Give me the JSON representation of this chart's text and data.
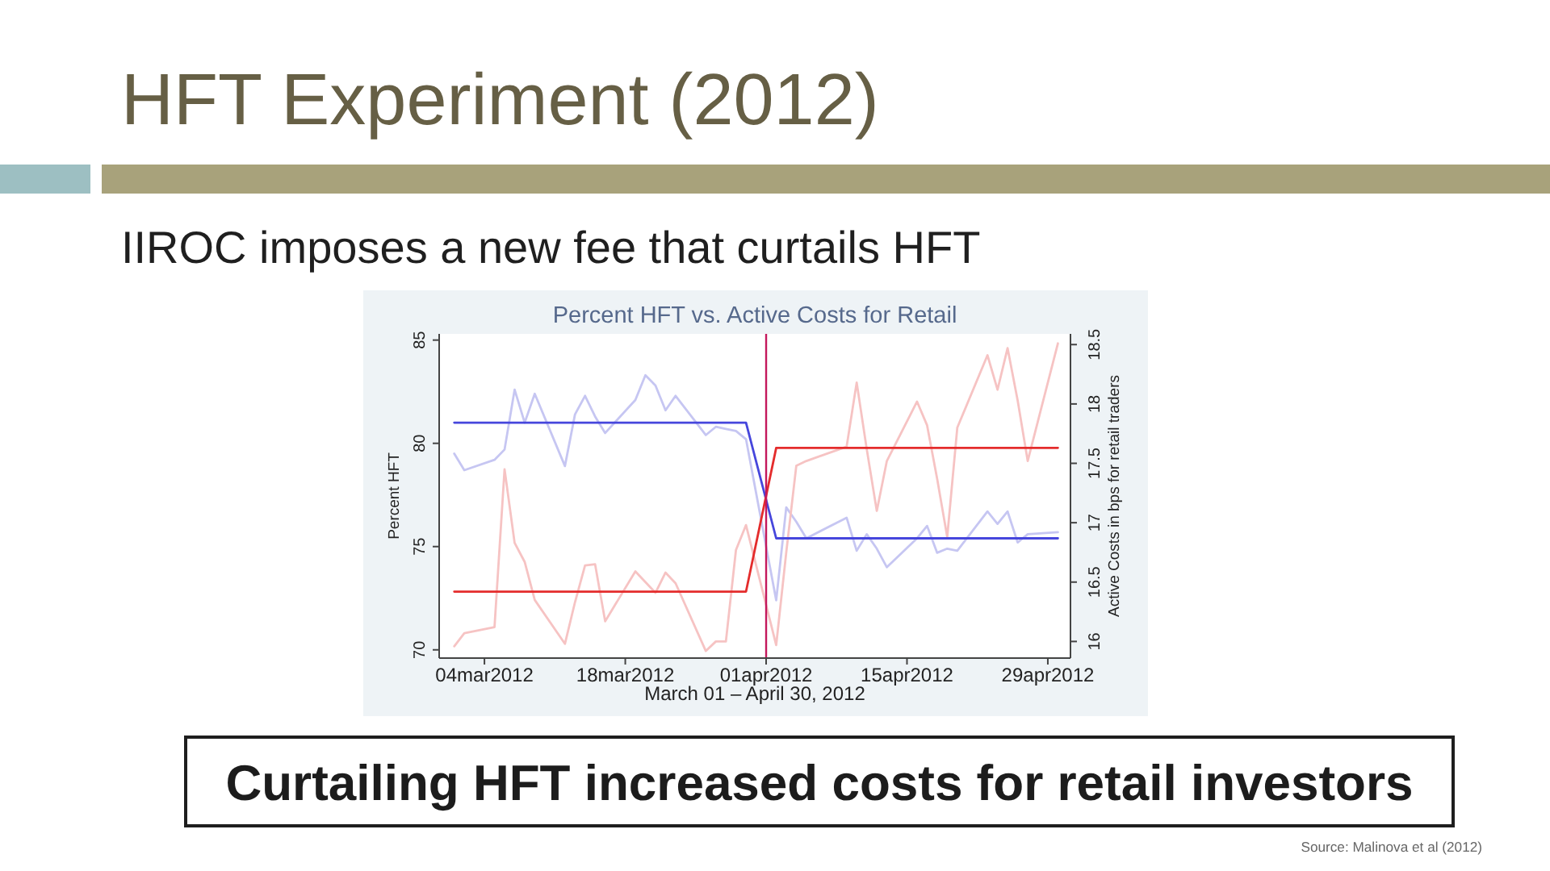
{
  "chart_data": {
    "type": "line",
    "title": "HFT Experiment (2012)",
    "subtitle": "IIROC imposes a new fee that curtails HFT",
    "annotations": [
      "Percent HFT vs. Active Costs for Retail",
      "Curtailing HFT increased costs for retail investors",
      "Source: Malinova et al (2012)"
    ],
    "xlabel": "March 01 – April 30, 2012",
    "ylabel": "Percent HFT",
    "y2label": "Active Costs in bps for retail traders",
    "x": [
      "2012-03-01",
      "2012-03-02",
      "2012-03-05",
      "2012-03-06",
      "2012-03-07",
      "2012-03-08",
      "2012-03-09",
      "2012-03-12",
      "2012-03-13",
      "2012-03-14",
      "2012-03-15",
      "2012-03-16",
      "2012-03-19",
      "2012-03-20",
      "2012-03-21",
      "2012-03-22",
      "2012-03-23",
      "2012-03-26",
      "2012-03-27",
      "2012-03-28",
      "2012-03-29",
      "2012-03-30",
      "2012-04-02",
      "2012-04-03",
      "2012-04-04",
      "2012-04-05",
      "2012-04-09",
      "2012-04-10",
      "2012-04-11",
      "2012-04-12",
      "2012-04-13",
      "2012-04-16",
      "2012-04-17",
      "2012-04-18",
      "2012-04-19",
      "2012-04-20",
      "2012-04-23",
      "2012-04-24",
      "2012-04-25",
      "2012-04-26",
      "2012-04-27",
      "2012-04-30"
    ],
    "series": [
      {
        "color": "#c6c6f2",
        "values": [
          79.5,
          78.7,
          79.2,
          79.7,
          82.6,
          81.0,
          82.4,
          78.9,
          81.4,
          82.3,
          81.3,
          80.5,
          82.1,
          83.3,
          82.8,
          81.6,
          82.3,
          80.4,
          80.8,
          80.7,
          80.6,
          80.2,
          72.4,
          76.9,
          76.2,
          75.4,
          76.4,
          74.8,
          75.6,
          74.9,
          74.0,
          75.4,
          76.0,
          74.7,
          74.9,
          74.8,
          76.7,
          76.1,
          76.7,
          75.2,
          75.6,
          75.7
        ]
      },
      {
        "color": "#f6c3c3",
        "axis": "y2",
        "values": [
          15.96,
          16.07,
          16.12,
          17.45,
          16.83,
          16.67,
          16.35,
          15.98,
          16.33,
          16.64,
          16.65,
          16.17,
          16.59,
          16.5,
          16.41,
          16.58,
          16.49,
          15.92,
          16.0,
          16.0,
          16.77,
          16.98,
          15.97,
          16.75,
          17.48,
          17.52,
          17.64,
          18.18,
          17.62,
          17.1,
          17.52,
          18.02,
          17.82,
          17.37,
          16.88,
          17.8,
          18.41,
          18.12,
          18.47,
          18.03,
          17.52,
          18.51
        ]
      },
      {
        "color": "#4646dc",
        "values": [
          81.0,
          81.0,
          81.0,
          81.0,
          81.0,
          81.0,
          81.0,
          81.0,
          81.0,
          81.0,
          81.0,
          81.0,
          81.0,
          81.0,
          81.0,
          81.0,
          81.0,
          81.0,
          81.0,
          81.0,
          81.0,
          81.0,
          75.4,
          75.4,
          75.4,
          75.4,
          75.4,
          75.4,
          75.4,
          75.4,
          75.4,
          75.4,
          75.4,
          75.4,
          75.4,
          75.4,
          75.4,
          75.4,
          75.4,
          75.4,
          75.4,
          75.4
        ]
      },
      {
        "color": "#e42c2c",
        "axis": "y2",
        "values": [
          16.42,
          16.42,
          16.42,
          16.42,
          16.42,
          16.42,
          16.42,
          16.42,
          16.42,
          16.42,
          16.42,
          16.42,
          16.42,
          16.42,
          16.42,
          16.42,
          16.42,
          16.42,
          16.42,
          16.42,
          16.42,
          16.42,
          17.63,
          17.63,
          17.63,
          17.63,
          17.63,
          17.63,
          17.63,
          17.63,
          17.63,
          17.63,
          17.63,
          17.63,
          17.63,
          17.63,
          17.63,
          17.63,
          17.63,
          17.63,
          17.63,
          17.63
        ]
      }
    ],
    "xlim": [
      "2012-02-28T12:00",
      "2012-05-01T06:00"
    ],
    "xticks": [
      {
        "value": "2012-03-04",
        "label": "04mar2012"
      },
      {
        "value": "2012-03-18",
        "label": "18mar2012"
      },
      {
        "value": "2012-04-01",
        "label": "01apr2012"
      },
      {
        "value": "2012-04-15",
        "label": "15apr2012"
      },
      {
        "value": "2012-04-29",
        "label": "29apr2012"
      }
    ],
    "ylim": [
      69.6,
      85.3
    ],
    "yticks": [
      70,
      75,
      80,
      85
    ],
    "y2lim": [
      15.86,
      18.59
    ],
    "y2ticks": [
      16,
      16.5,
      17,
      17.5,
      18,
      18.5
    ],
    "ref_lines": [
      {
        "axis": "x",
        "value": "2012-04-01",
        "color": "#c4185c"
      }
    ],
    "line_style": "solid"
  }
}
